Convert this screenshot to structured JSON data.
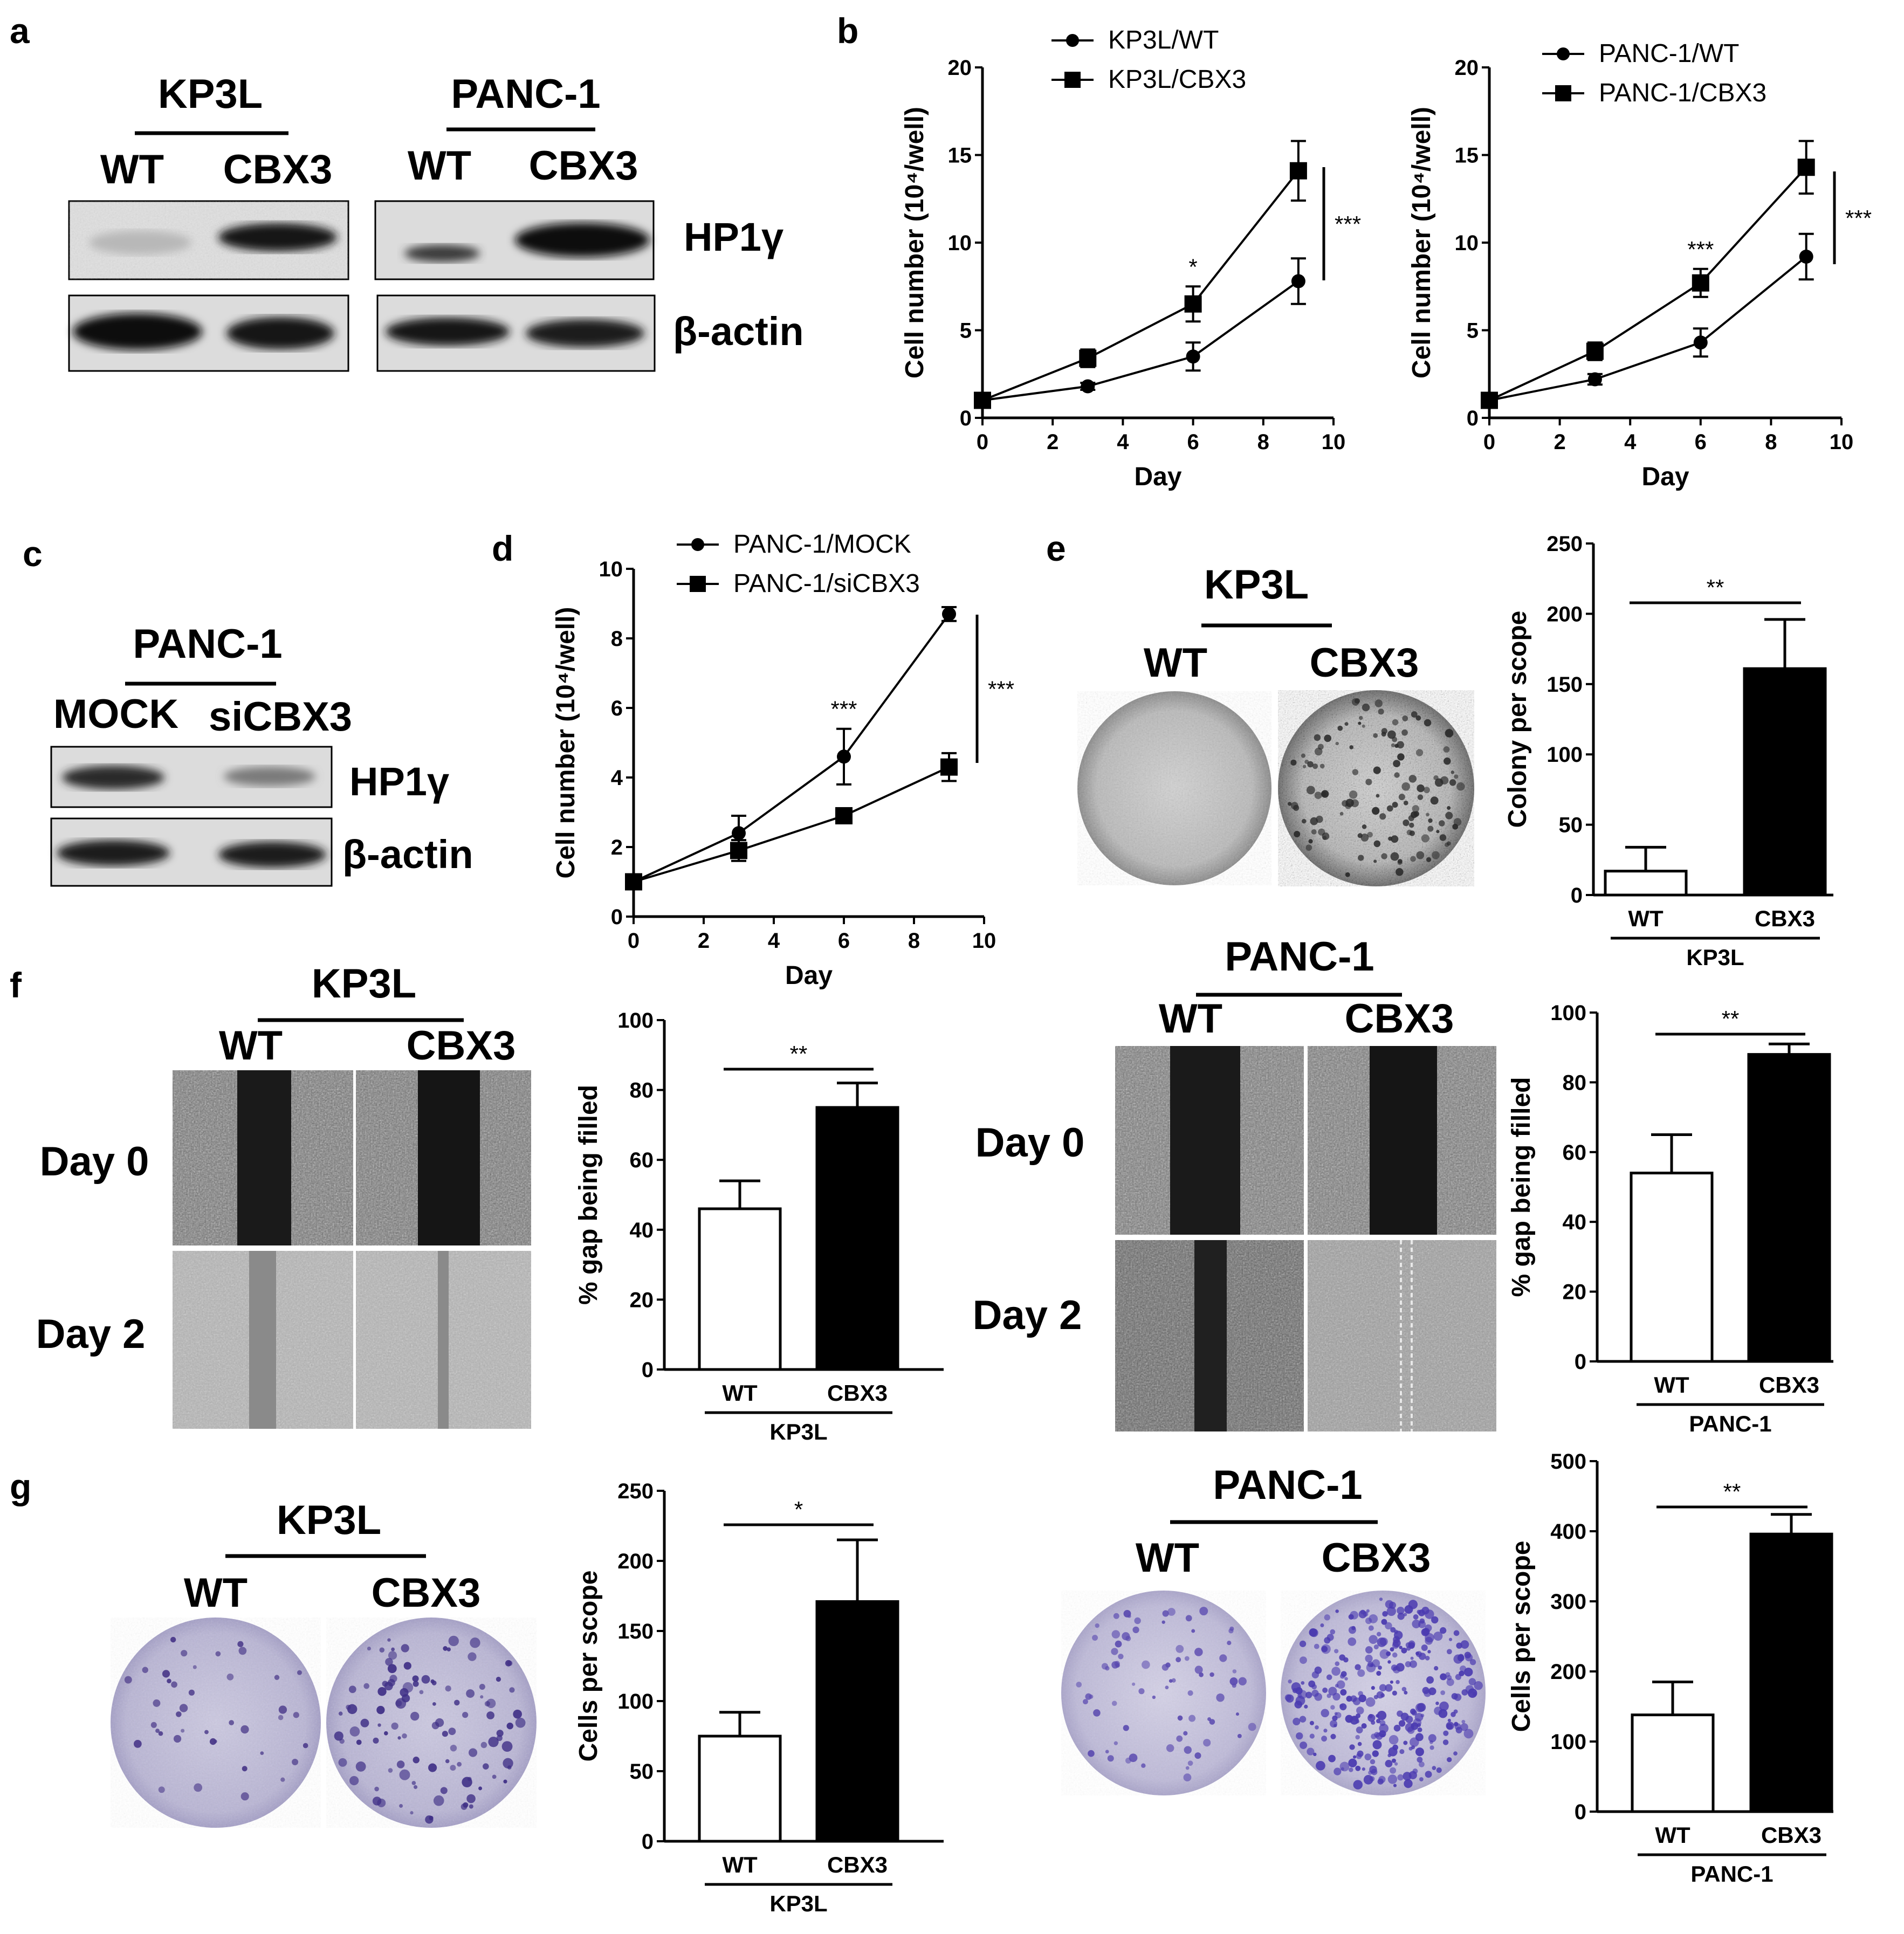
{
  "panels": {
    "a": {
      "label": "a",
      "groups": [
        {
          "cell": "KP3L",
          "lanes": [
            "WT",
            "CBX3"
          ]
        },
        {
          "cell": "PANC-1",
          "lanes": [
            "WT",
            "CBX3"
          ]
        }
      ],
      "rows": [
        "HP1γ",
        "β-actin"
      ]
    },
    "b": {
      "label": "b"
    },
    "c": {
      "label": "c",
      "cell": "PANC-1",
      "lanes": [
        "MOCK",
        "siCBX3"
      ],
      "rows": [
        "HP1γ",
        "β-actin"
      ]
    },
    "d": {
      "label": "d"
    },
    "e": {
      "label": "e",
      "plates": {
        "cell": "KP3L",
        "lanes": [
          "WT",
          "CBX3"
        ]
      }
    },
    "f": {
      "label": "f",
      "left": {
        "cell": "KP3L",
        "lanes": [
          "WT",
          "CBX3"
        ],
        "rows": [
          "Day 0",
          "Day 2"
        ]
      },
      "right": {
        "cell": "PANC-1",
        "lanes": [
          "WT",
          "CBX3"
        ],
        "rows": [
          "Day 0",
          "Day 2"
        ]
      }
    },
    "g": {
      "label": "g",
      "left": {
        "cell": "KP3L",
        "lanes": [
          "WT",
          "CBX3"
        ]
      },
      "right": {
        "cell": "PANC-1",
        "lanes": [
          "WT",
          "CBX3"
        ]
      }
    }
  },
  "chart_data": [
    {
      "id": "b1",
      "type": "line",
      "xlabel": "Day",
      "ylabel": "Cell number (10⁴/well)",
      "xlim": [
        0,
        10
      ],
      "ylim": [
        0,
        20
      ],
      "xticks": [
        0,
        2,
        4,
        6,
        8,
        10
      ],
      "yticks": [
        0,
        5,
        10,
        15,
        20
      ],
      "x": [
        0,
        3,
        6,
        9
      ],
      "series": [
        {
          "name": "KP3L/WT",
          "marker": "circle",
          "values": [
            1,
            1.8,
            3.5,
            7.8
          ],
          "err": [
            0.1,
            0.2,
            0.8,
            1.3
          ]
        },
        {
          "name": "KP3L/CBX3",
          "marker": "square",
          "values": [
            1,
            3.4,
            6.5,
            14.1
          ],
          "err": [
            0.1,
            0.5,
            1.0,
            1.7
          ]
        }
      ],
      "annotations": [
        {
          "text": "*",
          "x": 6
        },
        {
          "text": "***",
          "x": 10
        }
      ]
    },
    {
      "id": "b2",
      "type": "line",
      "xlabel": "Day",
      "ylabel": "Cell number (10⁴/well)",
      "xlim": [
        0,
        10
      ],
      "ylim": [
        0,
        20
      ],
      "xticks": [
        0,
        2,
        4,
        6,
        8,
        10
      ],
      "yticks": [
        0,
        5,
        10,
        15,
        20
      ],
      "x": [
        0,
        3,
        6,
        9
      ],
      "series": [
        {
          "name": "PANC-1/WT",
          "marker": "circle",
          "values": [
            1,
            2.2,
            4.3,
            9.2
          ],
          "err": [
            0.1,
            0.3,
            0.8,
            1.3
          ]
        },
        {
          "name": "PANC-1/CBX3",
          "marker": "square",
          "values": [
            1,
            3.8,
            7.7,
            14.3
          ],
          "err": [
            0.1,
            0.5,
            0.8,
            1.5
          ]
        }
      ],
      "annotations": [
        {
          "text": "***",
          "x": 6
        },
        {
          "text": "***",
          "x": 10
        }
      ]
    },
    {
      "id": "d",
      "type": "line",
      "xlabel": "Day",
      "ylabel": "Cell number (10⁴/well)",
      "xlim": [
        0,
        10
      ],
      "ylim": [
        0,
        10
      ],
      "xticks": [
        0,
        2,
        4,
        6,
        8,
        10
      ],
      "yticks": [
        0,
        2,
        4,
        6,
        8,
        10
      ],
      "x": [
        0,
        3,
        6,
        9
      ],
      "series": [
        {
          "name": "PANC-1/MOCK",
          "marker": "circle",
          "values": [
            1,
            2.4,
            4.6,
            8.7
          ],
          "err": [
            0.1,
            0.5,
            0.8,
            0.2
          ]
        },
        {
          "name": "PANC-1/siCBX3",
          "marker": "square",
          "values": [
            1,
            1.9,
            2.9,
            4.3
          ],
          "err": [
            0.1,
            0.3,
            0.1,
            0.4
          ]
        }
      ],
      "annotations": [
        {
          "text": "***",
          "x": 6
        },
        {
          "text": "***",
          "x": 10
        }
      ]
    },
    {
      "id": "e",
      "type": "bar",
      "ylabel": "Colony per scope",
      "group_label": "KP3L",
      "categories": [
        "WT",
        "CBX3"
      ],
      "values": [
        17,
        161
      ],
      "err": [
        17,
        35
      ],
      "ylim": [
        0,
        250
      ],
      "yticks": [
        0,
        50,
        100,
        150,
        200,
        250
      ],
      "significance": "**"
    },
    {
      "id": "f1",
      "type": "bar",
      "ylabel": "% gap being filled",
      "group_label": "KP3L",
      "categories": [
        "WT",
        "CBX3"
      ],
      "values": [
        46,
        75
      ],
      "err": [
        8,
        7
      ],
      "ylim": [
        0,
        100
      ],
      "yticks": [
        0,
        20,
        40,
        60,
        80,
        100
      ],
      "significance": "**"
    },
    {
      "id": "f2",
      "type": "bar",
      "ylabel": "% gap being filled",
      "group_label": "PANC-1",
      "categories": [
        "WT",
        "CBX3"
      ],
      "values": [
        54,
        88
      ],
      "err": [
        11,
        3
      ],
      "ylim": [
        0,
        100
      ],
      "yticks": [
        0,
        20,
        40,
        60,
        80,
        100
      ],
      "significance": "**"
    },
    {
      "id": "g1",
      "type": "bar",
      "ylabel": "Cells per scope",
      "group_label": "KP3L",
      "categories": [
        "WT",
        "CBX3"
      ],
      "values": [
        75,
        171
      ],
      "err": [
        17,
        44
      ],
      "ylim": [
        0,
        250
      ],
      "yticks": [
        0,
        50,
        100,
        150,
        200,
        250
      ],
      "significance": "*"
    },
    {
      "id": "g2",
      "type": "bar",
      "ylabel": "Cells per scope",
      "group_label": "PANC-1",
      "categories": [
        "WT",
        "CBX3"
      ],
      "values": [
        138,
        396
      ],
      "err": [
        47,
        28
      ],
      "ylim": [
        0,
        500
      ],
      "yticks": [
        0,
        100,
        200,
        300,
        400,
        500
      ],
      "significance": "**"
    }
  ]
}
